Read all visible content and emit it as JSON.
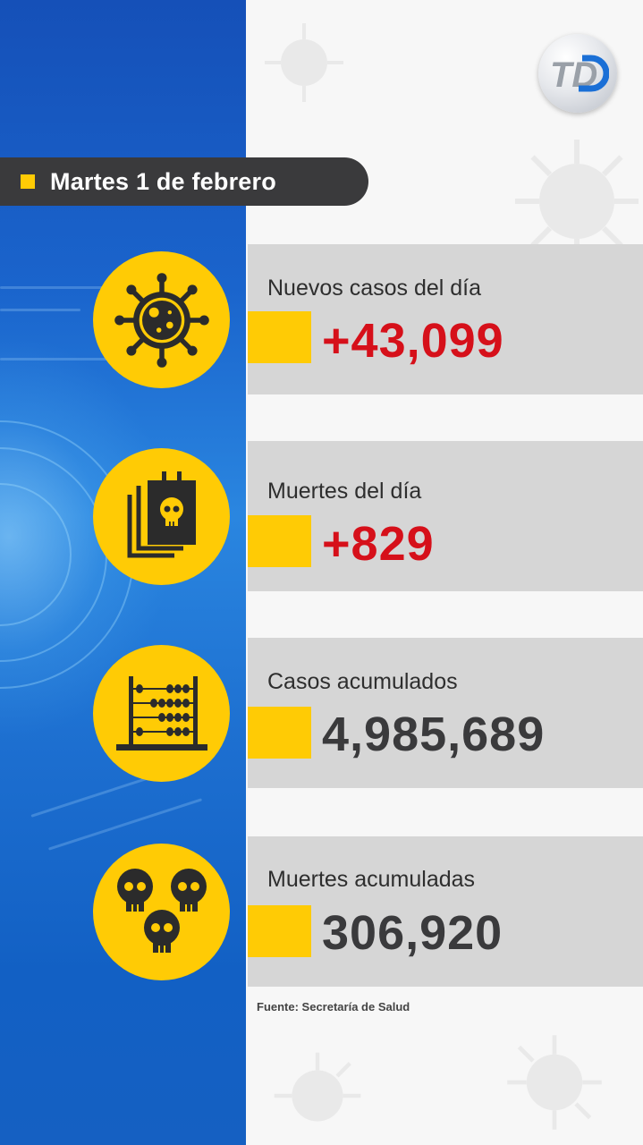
{
  "date_label": "Martes 1 de febrero",
  "accent_color": "#ffcb05",
  "stats": [
    {
      "label": "Nuevos casos del día",
      "value": "+43,099",
      "icon": "virus-icon",
      "value_color": "#d6101a"
    },
    {
      "label": "Muertes del día",
      "value": "+829",
      "icon": "death-certificate-icon",
      "value_color": "#d6101a"
    },
    {
      "label": "Casos acumulados",
      "value": "4,985,689",
      "icon": "abacus-icon",
      "value_color": "#3a3a3c"
    },
    {
      "label": "Muertes acumuladas",
      "value": "306,920",
      "icon": "skulls-icon",
      "value_color": "#3a3a3c"
    }
  ],
  "source": "Fuente: Secretaría de Salud",
  "logo_text": "TD"
}
